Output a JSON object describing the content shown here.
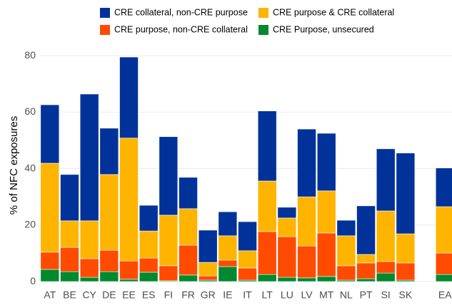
{
  "chart_data": {
    "type": "stacked-bar",
    "y_label": "% of NFC exposures",
    "categories": [
      "AT",
      "BE",
      "CY",
      "DE",
      "EE",
      "ES",
      "FI",
      "FR",
      "GR",
      "IE",
      "IT",
      "LT",
      "LU",
      "LV",
      "MT",
      "NL",
      "PT",
      "SI",
      "SK",
      null,
      "EA"
    ],
    "series": [
      {
        "name": "CRE Purpose, unsecured",
        "color": "#00892f",
        "values": [
          4.3,
          3.5,
          1.5,
          3.5,
          0.8,
          3.3,
          0.3,
          2.3,
          0.5,
          5.3,
          0.5,
          2.5,
          1.5,
          1.3,
          1.8,
          0.5,
          1,
          3,
          0.5,
          null,
          2.5
        ]
      },
      {
        "name": "CRE purpose, non-CRE collateral",
        "color": "#ff4b00",
        "values": [
          6.1,
          8.6,
          6.6,
          7.6,
          6.5,
          5,
          5.3,
          10.6,
          1.5,
          2.3,
          4.3,
          15.2,
          14.4,
          11.3,
          15.4,
          5.1,
          5.6,
          4.1,
          6.1,
          null,
          7.6
        ]
      },
      {
        "name": "CRE purpose & CRE collateral",
        "color": "#ffb400",
        "values": [
          31.5,
          9.4,
          13.4,
          26.8,
          43.5,
          9.6,
          17.9,
          12.9,
          4.8,
          8.6,
          6.1,
          17.9,
          6.6,
          17.4,
          14.9,
          10.6,
          3,
          17.9,
          10.3,
          null,
          16.4
        ]
      },
      {
        "name": "CRE collateral, non-CRE purpose",
        "color": "#003299",
        "values": [
          20.7,
          16.4,
          44.9,
          16.4,
          28.7,
          9.1,
          27.8,
          11.1,
          11.4,
          8.5,
          10.3,
          24.8,
          3.8,
          24,
          20.4,
          5.5,
          17.2,
          22,
          28.6,
          null,
          13.7
        ]
      }
    ],
    "ylim": [
      -1.5,
      83.3
    ],
    "yticks": [
      0,
      20,
      40,
      60,
      80
    ],
    "grid": true
  }
}
